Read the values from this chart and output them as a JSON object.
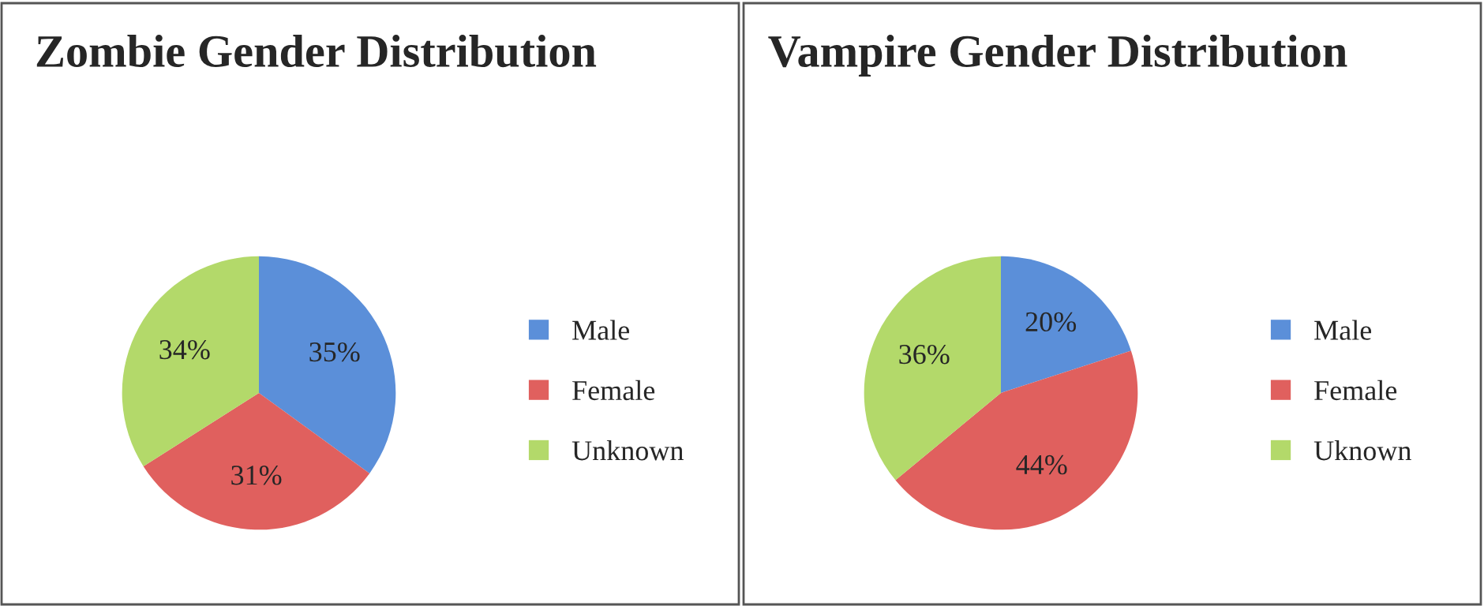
{
  "chart_data": [
    {
      "type": "pie",
      "title": "Zombie Gender Distribution",
      "categories": [
        "Male",
        "Female",
        "Unknown"
      ],
      "values": [
        35,
        31,
        34
      ],
      "colors": [
        "#5b8fd9",
        "#e0605e",
        "#b3d96a"
      ],
      "value_labels": [
        "35%",
        "31%",
        "34%"
      ],
      "legend": "right"
    },
    {
      "type": "pie",
      "title": "Vampire Gender Distribution",
      "categories": [
        "Male",
        "Female",
        "Uknown"
      ],
      "values": [
        20,
        44,
        36
      ],
      "colors": [
        "#5b8fd9",
        "#e0605e",
        "#b3d96a"
      ],
      "value_labels": [
        "20%",
        "44%",
        "36%"
      ],
      "legend": "right"
    }
  ]
}
